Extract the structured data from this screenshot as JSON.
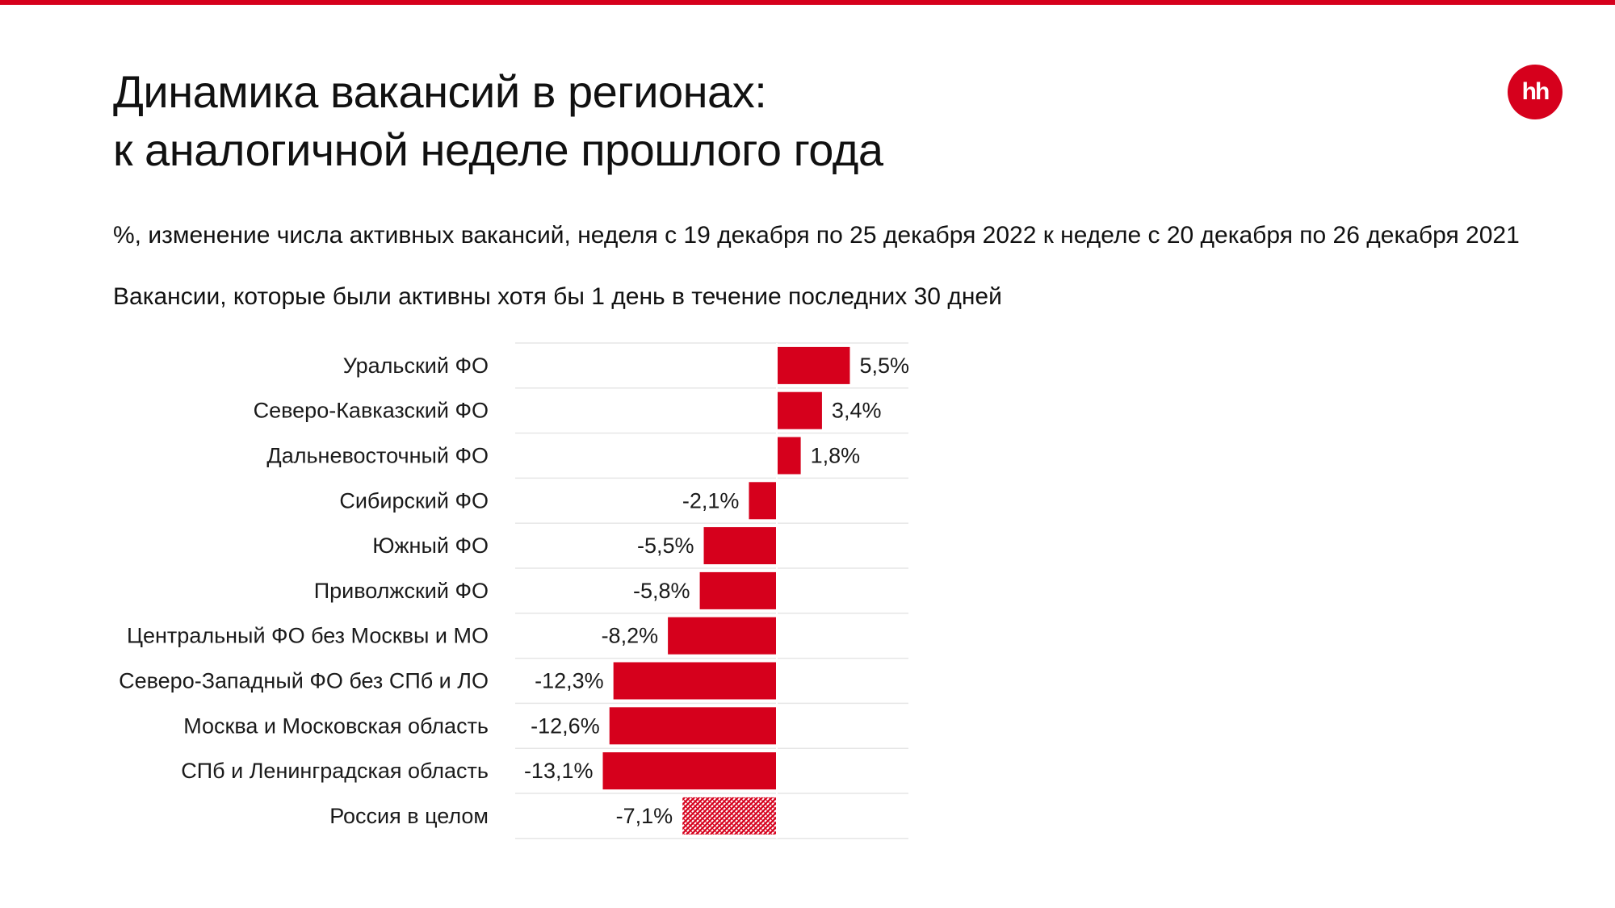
{
  "title_line1": "Динамика вакансий в регионах:",
  "title_line2": "к аналогичной неделе прошлого года",
  "logo_text": "hh",
  "subtitle": "%, изменение числа активных вакансий, неделя с 19 декабря по 25 декабря 2022 к неделе с 20 декабря по 26 декабря 2021",
  "note": "Вакансии, которые были активны хотя бы 1 день в течение последних 30 дней",
  "colors": {
    "accent": "#d6001c",
    "bar": "#d6001c",
    "hatched_bar": "#d6001c"
  },
  "chart_data": {
    "type": "bar",
    "orientation": "horizontal",
    "categories": [
      "Уральский ФО",
      "Северо-Кавказский ФО",
      "Дальневосточный ФО",
      "Сибирский ФО",
      "Южный ФО",
      "Приволжский ФО",
      "Центральный ФО без Москвы и МО",
      "Северо-Западный ФО без СПб и ЛО",
      "Москва и Московская область",
      "СПб и Ленинградская область",
      "Россия в целом"
    ],
    "values": [
      5.5,
      3.4,
      1.8,
      -2.1,
      -5.5,
      -5.8,
      -8.2,
      -12.3,
      -12.6,
      -13.1,
      -7.1
    ],
    "value_labels": [
      "5,5%",
      "3,4%",
      "1,8%",
      "-2,1%",
      "-5,5%",
      "-5,8%",
      "-8,2%",
      "-12,3%",
      "-12,6%",
      "-13,1%",
      "-7,1%"
    ],
    "hatched": [
      false,
      false,
      false,
      false,
      false,
      false,
      false,
      false,
      false,
      false,
      true
    ],
    "xlim": [
      -20,
      10
    ],
    "grid": false
  }
}
